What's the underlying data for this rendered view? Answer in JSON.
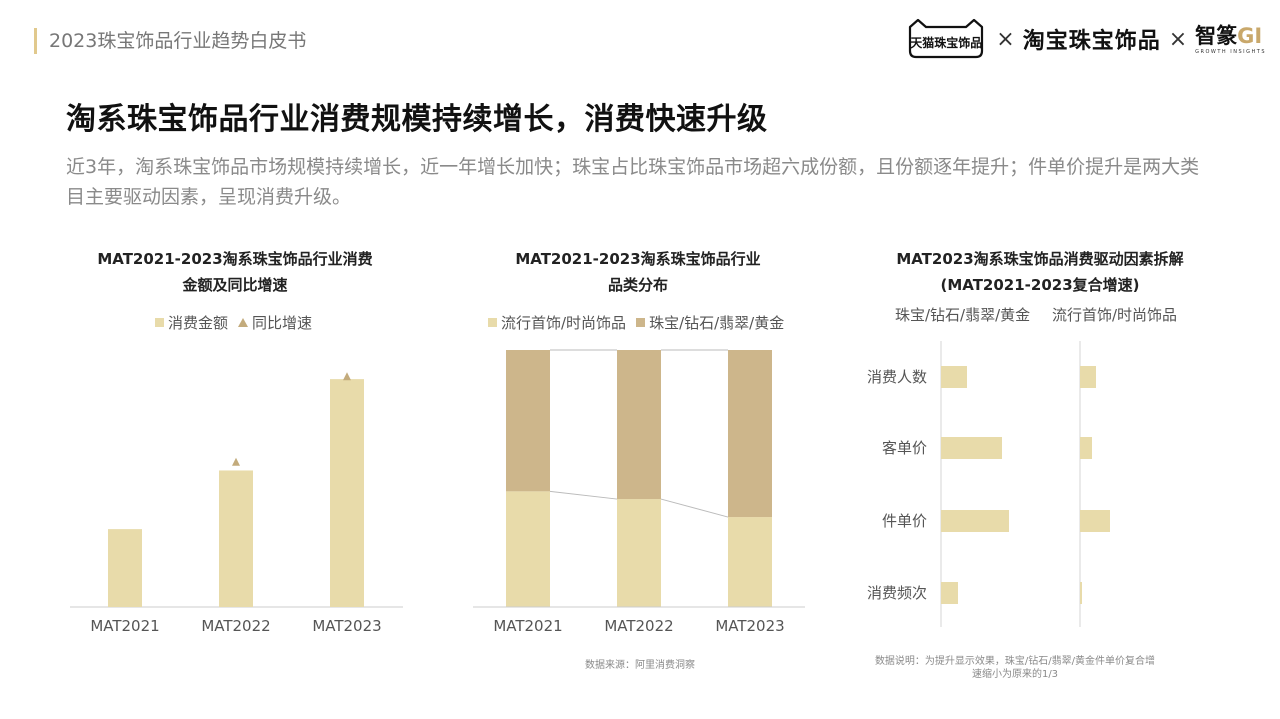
{
  "header": {
    "doc_title": "2023珠宝饰品行业趋势白皮书",
    "brands": {
      "tmall": "天猫珠宝饰品",
      "times1": "×",
      "taobao": "淘宝珠宝饰品",
      "times2": "×",
      "zhizuan_main": "智篆",
      "zhizuan_gi": "GI",
      "zhizuan_sub": "GROWTH INSIGHTS"
    }
  },
  "headline": "淘系珠宝饰品行业消费规模持续增长，消费快速升级",
  "subtext": "近3年，淘系珠宝饰品市场规模持续增长，近一年增长加快；珠宝占比珠宝饰品市场超六成份额，且份额逐年提升；件单价提升是两大类目主要驱动因素，呈现消费升级。",
  "colors": {
    "light": "#e8dbaa",
    "dark": "#cdb68b",
    "marker": "#c3ab7c",
    "axis": "#cccccc",
    "connector": "#bbbbbb"
  },
  "chart_data": [
    {
      "type": "bar",
      "title_line1": "MAT2021-2023淘系珠宝饰品行业消费",
      "title_line2": "金额及同比增速",
      "legend": [
        "消费金额",
        "同比增速"
      ],
      "categories": [
        "MAT2021",
        "MAT2022",
        "MAT2023"
      ],
      "series": [
        {
          "name": "消费金额",
          "values": [
            81,
            142,
            237
          ],
          "kind": "bar"
        },
        {
          "name": "同比增速",
          "values": [
            null,
            151,
            240
          ],
          "kind": "marker"
        }
      ],
      "ylim": [
        0,
        260
      ]
    },
    {
      "type": "bar",
      "stacked": true,
      "percent": true,
      "title_line1": "MAT2021-2023淘系珠宝饰品行业",
      "title_line2": "品类分布",
      "legend": [
        "流行首饰/时尚饰品",
        "珠宝/钻石/翡翠/黄金"
      ],
      "categories": [
        "MAT2021",
        "MAT2022",
        "MAT2023"
      ],
      "series": [
        {
          "name": "流行首饰/时尚饰品",
          "values": [
            45,
            42,
            35
          ]
        },
        {
          "name": "珠宝/钻石/翡翠/黄金",
          "values": [
            55,
            58,
            65
          ]
        }
      ],
      "ylim": [
        0,
        100
      ]
    },
    {
      "type": "bar",
      "orientation": "horizontal",
      "title_line1": "MAT2023淘系珠宝饰品消费驱动因素拆解",
      "title_line2": "(MAT2021-2023复合增速)",
      "panels": [
        "珠宝/钻石/翡翠/黄金",
        "流行首饰/时尚饰品"
      ],
      "categories": [
        "消费人数",
        "客单价",
        "件单价",
        "消费频次"
      ],
      "series": [
        {
          "name": "珠宝/钻石/翡翠/黄金",
          "values": [
            26,
            61,
            68,
            17
          ]
        },
        {
          "name": "流行首饰/时尚饰品",
          "values": [
            16,
            12,
            30,
            2
          ]
        }
      ],
      "xlim": [
        0,
        100
      ]
    }
  ],
  "notes": {
    "source": "数据来源：阿里消费洞察",
    "footnote_line1": "数据说明：为提升显示效果，珠宝/钻石/翡翠/黄金件单价复合增",
    "footnote_line2": "速缩小为原来的1/3"
  }
}
